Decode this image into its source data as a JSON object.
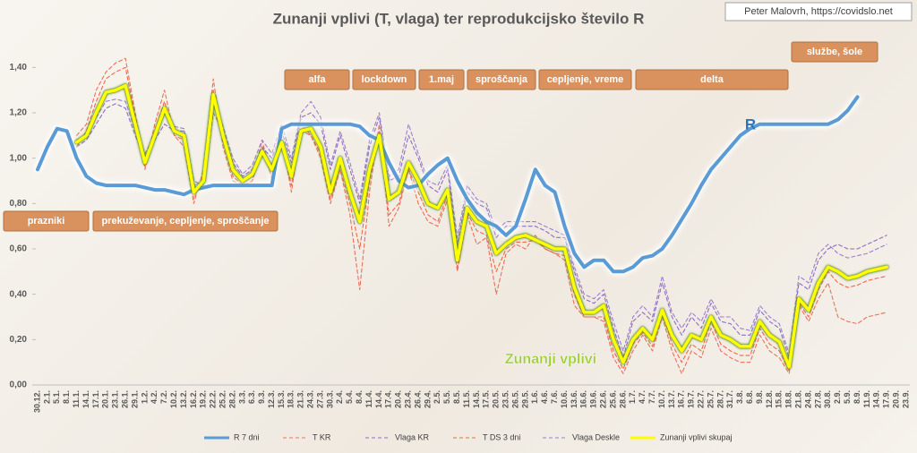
{
  "chart_data": {
    "type": "line",
    "title": "Zunanji vplivi (T, vlaga) ter reprodukcijsko število R",
    "credit": "Peter Malovrh, https://covidslo.net",
    "categories": [
      "30.12.",
      "2.1.",
      "5.1.",
      "8.1.",
      "11.1.",
      "14.1.",
      "17.1.",
      "20.1.",
      "23.1.",
      "26.1.",
      "29.1.",
      "1.2.",
      "4.2.",
      "7.2.",
      "10.2.",
      "13.2.",
      "16.2.",
      "19.2.",
      "22.2.",
      "25.2.",
      "28.2.",
      "3.3.",
      "6.3.",
      "9.3.",
      "12.3.",
      "15.3.",
      "18.3.",
      "21.3.",
      "24.3.",
      "27.3.",
      "30.3.",
      "2.4.",
      "5.4.",
      "8.4.",
      "11.4.",
      "14.4.",
      "17.4.",
      "20.4.",
      "23.4.",
      "26.4.",
      "29.4.",
      "2.5.",
      "5.5.",
      "8.5.",
      "11.5.",
      "14.5.",
      "17.5.",
      "20.5.",
      "23.5.",
      "26.5.",
      "29.5.",
      "1.6.",
      "4.6.",
      "7.6.",
      "10.6.",
      "13.6.",
      "16.6.",
      "19.6.",
      "22.6.",
      "25.6.",
      "28.6.",
      "1.7.",
      "4.7.",
      "7.7.",
      "10.7.",
      "13.7.",
      "16.7.",
      "19.7.",
      "22.7.",
      "25.7.",
      "28.7.",
      "31.7.",
      "3.8.",
      "6.8.",
      "9.8.",
      "12.8.",
      "15.8.",
      "18.8.",
      "21.8.",
      "24.8.",
      "27.8.",
      "30.8.",
      "2.9.",
      "5.9.",
      "8.9.",
      "11.9.",
      "14.9.",
      "17.9.",
      "20.9.",
      "23.9."
    ],
    "series": [
      {
        "name": "R 7 dni",
        "color": "#5b9bd5",
        "style": "solid",
        "values": [
          0.95,
          1.05,
          1.13,
          1.12,
          1.0,
          0.92,
          0.89,
          0.88,
          0.88,
          0.88,
          0.88,
          0.87,
          0.86,
          0.86,
          0.85,
          0.84,
          0.86,
          0.87,
          0.88,
          0.88,
          0.88,
          0.88,
          0.88,
          0.88,
          0.88,
          1.13,
          1.15,
          1.15,
          1.15,
          1.15,
          1.15,
          1.15,
          1.15,
          1.14,
          1.1,
          1.08,
          0.98,
          0.9,
          0.87,
          0.88,
          0.93,
          0.97,
          1.0,
          0.9,
          0.82,
          0.76,
          0.72,
          0.7,
          0.66,
          0.7,
          0.82,
          0.95,
          0.88,
          0.85,
          0.7,
          0.58,
          0.52,
          0.55,
          0.55,
          0.5,
          0.5,
          0.52,
          0.56,
          0.57,
          0.6,
          0.66,
          0.73,
          0.8,
          0.88,
          0.95,
          1.0,
          1.05,
          1.1,
          1.13,
          1.15,
          1.15,
          1.15,
          1.15,
          1.15,
          1.15,
          1.15,
          1.15,
          1.17,
          1.21,
          1.27,
          null,
          null,
          null,
          null,
          null
        ]
      },
      {
        "name": "T KR",
        "color": "#e8715a",
        "style": "dashed",
        "values": [
          null,
          null,
          null,
          null,
          1.1,
          1.15,
          1.3,
          1.38,
          1.42,
          1.44,
          1.2,
          0.95,
          1.15,
          1.3,
          1.1,
          1.05,
          0.8,
          0.95,
          1.35,
          1.05,
          0.9,
          0.88,
          0.9,
          1.08,
          0.9,
          1.1,
          0.85,
          1.15,
          1.1,
          1.0,
          0.8,
          0.95,
          0.75,
          0.42,
          0.85,
          1.15,
          0.7,
          0.78,
          0.95,
          0.8,
          0.72,
          0.7,
          0.82,
          0.5,
          0.75,
          0.62,
          0.65,
          0.4,
          0.58,
          0.62,
          0.6,
          0.66,
          0.6,
          0.58,
          0.55,
          0.35,
          0.3,
          0.3,
          0.28,
          0.12,
          0.05,
          0.15,
          0.22,
          0.15,
          0.3,
          0.15,
          0.05,
          0.15,
          0.12,
          0.25,
          0.15,
          0.12,
          0.1,
          0.1,
          0.22,
          0.15,
          0.12,
          0.05,
          0.35,
          0.28,
          0.38,
          0.45,
          0.3,
          0.28,
          0.27,
          0.3,
          0.31,
          0.32,
          null,
          null
        ]
      },
      {
        "name": "Vlaga KR",
        "color": "#8e6cc4",
        "style": "dashed",
        "values": [
          null,
          null,
          null,
          null,
          1.05,
          1.08,
          1.15,
          1.22,
          1.24,
          1.22,
          1.1,
          1.0,
          1.08,
          1.15,
          1.12,
          1.12,
          0.9,
          0.88,
          1.2,
          1.12,
          0.98,
          0.92,
          0.95,
          1.05,
          1.0,
          1.12,
          0.98,
          1.18,
          1.2,
          1.15,
          0.95,
          1.1,
          0.95,
          0.8,
          1.05,
          1.18,
          0.9,
          0.92,
          1.1,
          1.0,
          0.88,
          0.85,
          0.95,
          0.62,
          0.85,
          0.8,
          0.78,
          0.65,
          0.7,
          0.7,
          0.7,
          0.7,
          0.68,
          0.65,
          0.65,
          0.5,
          0.38,
          0.36,
          0.4,
          0.25,
          0.12,
          0.28,
          0.32,
          0.28,
          0.45,
          0.3,
          0.22,
          0.3,
          0.25,
          0.36,
          0.28,
          0.27,
          0.22,
          0.22,
          0.33,
          0.28,
          0.25,
          0.12,
          0.45,
          0.42,
          0.55,
          0.6,
          0.62,
          0.6,
          0.6,
          0.62,
          0.64,
          0.66,
          null,
          null
        ]
      },
      {
        "name": "T DS 3 dni",
        "color": "#f0684a",
        "style": "dashed",
        "values": [
          null,
          null,
          null,
          null,
          1.05,
          1.12,
          1.25,
          1.35,
          1.38,
          1.4,
          1.18,
          0.96,
          1.12,
          1.25,
          1.1,
          1.08,
          0.82,
          0.92,
          1.3,
          1.08,
          0.92,
          0.88,
          0.9,
          1.05,
          0.92,
          1.08,
          0.88,
          1.12,
          1.1,
          1.02,
          0.82,
          0.95,
          0.8,
          0.6,
          0.9,
          1.12,
          0.75,
          0.8,
          0.95,
          0.85,
          0.75,
          0.72,
          0.84,
          0.52,
          0.76,
          0.68,
          0.66,
          0.5,
          0.6,
          0.63,
          0.63,
          0.64,
          0.6,
          0.58,
          0.57,
          0.4,
          0.3,
          0.3,
          0.3,
          0.15,
          0.07,
          0.18,
          0.23,
          0.17,
          0.32,
          0.18,
          0.1,
          0.18,
          0.15,
          0.28,
          0.18,
          0.15,
          0.13,
          0.13,
          0.25,
          0.18,
          0.15,
          0.06,
          0.36,
          0.3,
          0.42,
          0.5,
          0.45,
          0.43,
          0.44,
          0.46,
          0.47,
          0.48,
          null,
          null
        ]
      },
      {
        "name": "Vlaga Deskle",
        "color": "#9b7fd0",
        "style": "dashed",
        "values": [
          null,
          null,
          null,
          null,
          1.08,
          1.1,
          1.18,
          1.25,
          1.26,
          1.25,
          1.12,
          1.02,
          1.1,
          1.2,
          1.14,
          1.13,
          0.88,
          0.9,
          1.25,
          1.14,
          1.0,
          0.93,
          0.97,
          1.08,
          1.02,
          1.15,
          1.0,
          1.2,
          1.25,
          1.18,
          0.97,
          1.12,
          0.98,
          0.82,
          1.08,
          1.2,
          0.92,
          0.95,
          1.15,
          1.02,
          0.9,
          0.88,
          0.97,
          0.65,
          0.88,
          0.82,
          0.8,
          0.68,
          0.72,
          0.72,
          0.72,
          0.72,
          0.7,
          0.68,
          0.66,
          0.52,
          0.4,
          0.38,
          0.42,
          0.28,
          0.15,
          0.3,
          0.35,
          0.3,
          0.48,
          0.32,
          0.25,
          0.32,
          0.28,
          0.38,
          0.3,
          0.3,
          0.25,
          0.24,
          0.35,
          0.3,
          0.27,
          0.14,
          0.48,
          0.45,
          0.58,
          0.62,
          0.58,
          0.56,
          0.57,
          0.58,
          0.6,
          0.62,
          null,
          null
        ]
      },
      {
        "name": "Zunanji vplivi skupaj",
        "color": "#ffff00",
        "style": "solid",
        "values": [
          null,
          null,
          null,
          null,
          1.07,
          1.1,
          1.2,
          1.29,
          1.3,
          1.32,
          1.15,
          0.98,
          1.1,
          1.22,
          1.12,
          1.1,
          0.85,
          0.9,
          1.28,
          1.1,
          0.95,
          0.9,
          0.93,
          1.03,
          0.95,
          1.07,
          0.92,
          1.12,
          1.13,
          1.05,
          0.85,
          1.0,
          0.85,
          0.72,
          0.95,
          1.1,
          0.82,
          0.85,
          0.98,
          0.9,
          0.8,
          0.78,
          0.86,
          0.55,
          0.78,
          0.72,
          0.7,
          0.58,
          0.62,
          0.65,
          0.66,
          0.64,
          0.62,
          0.6,
          0.6,
          0.43,
          0.32,
          0.32,
          0.35,
          0.2,
          0.1,
          0.2,
          0.25,
          0.2,
          0.33,
          0.22,
          0.15,
          0.22,
          0.2,
          0.3,
          0.22,
          0.2,
          0.17,
          0.17,
          0.28,
          0.22,
          0.19,
          0.08,
          0.38,
          0.33,
          0.45,
          0.52,
          0.5,
          0.47,
          0.48,
          0.5,
          0.51,
          0.52,
          null,
          null
        ]
      }
    ],
    "ylim": [
      0,
      1.5
    ],
    "yticks": [
      {
        "value": 0,
        "label": "0,00"
      },
      {
        "value": 0.2,
        "label": "0,20"
      },
      {
        "value": 0.4,
        "label": "0,40"
      },
      {
        "value": 0.6,
        "label": "0,60"
      },
      {
        "value": 0.8,
        "label": "0,80"
      },
      {
        "value": 1,
        "label": "1,00"
      },
      {
        "value": 1.2,
        "label": "1,20"
      },
      {
        "value": 1.4,
        "label": "1,40"
      }
    ],
    "legend": "bottom",
    "annotations": [
      "alfa",
      "lockdown",
      "1.maj",
      "sproščanja",
      "cepljenje, vreme",
      "delta",
      "službe, šole",
      "prazniki",
      "prekuževanje, cepljenje, sproščanje"
    ],
    "series_labels": [
      "R",
      "Zunanji vplivi"
    ]
  }
}
